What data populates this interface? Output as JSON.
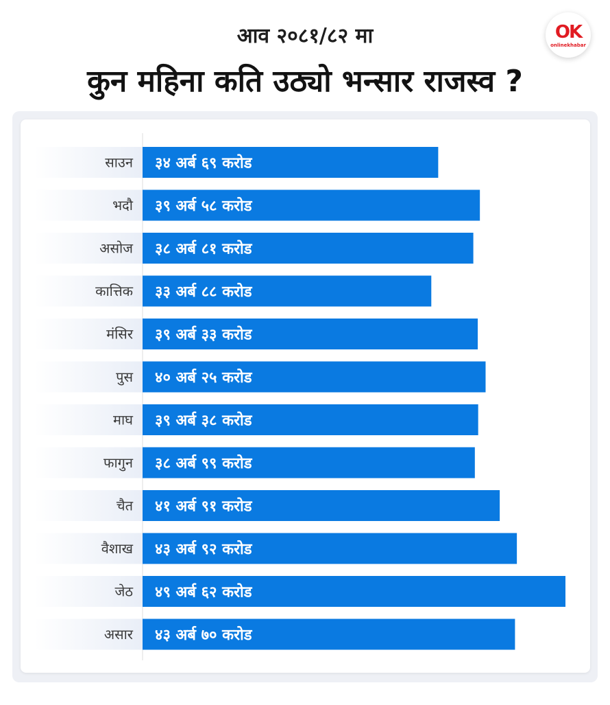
{
  "header": {
    "subtitle": "आव २०८१/८२ मा",
    "title": "कुन महिना कति उठ्यो भन्सार राजस्व ?",
    "logo_text": "onlinekhabar"
  },
  "colors": {
    "bar": "#0a7ae1",
    "label_gradient_end": "#e9eef7",
    "card_bg": "#ffffff",
    "band_bg": "#eef0f5"
  },
  "chart_data": {
    "type": "bar",
    "orientation": "horizontal",
    "categories": [
      "साउन",
      "भदौ",
      "असोज",
      "कात्तिक",
      "मंसिर",
      "पुस",
      "माघ",
      "फागुन",
      "चैत",
      "वैशाख",
      "जेठ",
      "असार"
    ],
    "values": [
      34.69,
      39.58,
      38.81,
      33.88,
      39.33,
      40.25,
      39.38,
      38.99,
      41.91,
      43.92,
      49.62,
      43.7
    ],
    "data_labels": [
      "३४ अर्ब ६९ करोड",
      "३९ अर्ब ५८ करोड",
      "३८ अर्ब ८१ करोड",
      "३३ अर्ब ८८ करोड",
      "३९ अर्ब ३३ करोड",
      "४० अर्ब २५ करोड",
      "३९ अर्ब ३८ करोड",
      "३८ अर्ब ९९ करोड",
      "४१ अर्ब ९१ करोड",
      "४३ अर्ब ९२ करोड",
      "४९ अर्ब ६२ करोड",
      "४३ अर्ब ७० करोड"
    ],
    "xlim": [
      0,
      49.62
    ],
    "grid": false,
    "legend": "none"
  }
}
